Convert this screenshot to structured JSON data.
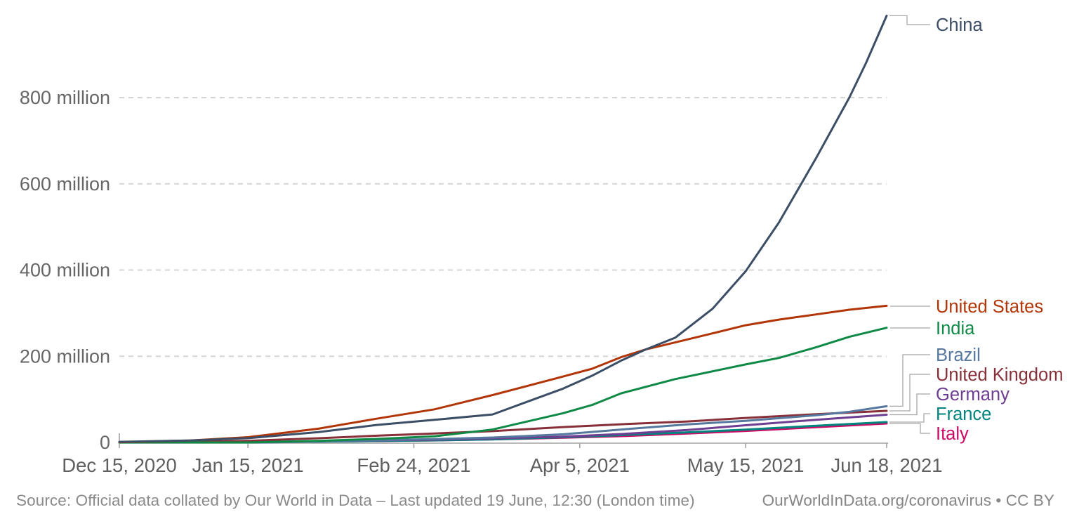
{
  "footer": {
    "source": "Source: Official data collated by Our World in Data – Last updated 19 June, 12:30 (London time)",
    "watermark": "OurWorldInData.org/coronavirus • CC BY"
  },
  "colors": {
    "grid": "#d5d5d5",
    "axis": "#a3a3a3",
    "tick_label": "#5f5f5f",
    "connector": "#a8a8a8",
    "background": "#ffffff"
  },
  "chart_data": {
    "type": "line",
    "title": "",
    "xlabel": "",
    "ylabel": "",
    "y_unit": "doses (millions)",
    "ylim": [
      0,
      1000
    ],
    "xlim_days": [
      0,
      185
    ],
    "x_range_dates": [
      "2020-12-15",
      "2021-06-18"
    ],
    "grid": "dashed-horizontal",
    "legend_position": "right-edge-entity-labels",
    "x_ticks": [
      {
        "label": "Dec 15, 2020",
        "day": 0
      },
      {
        "label": "Jan 15, 2021",
        "day": 31
      },
      {
        "label": "Feb 24, 2021",
        "day": 71
      },
      {
        "label": "Apr 5, 2021",
        "day": 111
      },
      {
        "label": "May 15, 2021",
        "day": 151
      },
      {
        "label": "Jun 18, 2021",
        "day": 185
      }
    ],
    "y_ticks": [
      {
        "label": "0",
        "value": 0
      },
      {
        "label": "200 million",
        "value": 200
      },
      {
        "label": "400 million",
        "value": 400
      },
      {
        "label": "600 million",
        "value": 600
      },
      {
        "label": "800 million",
        "value": 800
      }
    ],
    "series": [
      {
        "name": "Italy",
        "color": "#CF0A66",
        "label_y": 617,
        "elbow_x": 1311,
        "points": [
          [
            0,
            0
          ],
          [
            12,
            0.02
          ],
          [
            31,
            1.1
          ],
          [
            48,
            2.3
          ],
          [
            62,
            3.4
          ],
          [
            76,
            4.7
          ],
          [
            90,
            7.2
          ],
          [
            107,
            10.9
          ],
          [
            121,
            14.7
          ],
          [
            137,
            20.8
          ],
          [
            151,
            26.7
          ],
          [
            168,
            35.5
          ],
          [
            185,
            44
          ]
        ]
      },
      {
        "name": "France",
        "color": "#00847E",
        "label_y": 589,
        "elbow_x": 1316,
        "points": [
          [
            0,
            0
          ],
          [
            12,
            0.01
          ],
          [
            31,
            0.6
          ],
          [
            48,
            1.8
          ],
          [
            62,
            3.4
          ],
          [
            76,
            4.9
          ],
          [
            90,
            7.1
          ],
          [
            107,
            12.1
          ],
          [
            121,
            16.9
          ],
          [
            137,
            23.5
          ],
          [
            151,
            29.6
          ],
          [
            168,
            38.7
          ],
          [
            185,
            47.2
          ]
        ]
      },
      {
        "name": "Germany",
        "color": "#6D3E91",
        "label_y": 561,
        "elbow_x": 1306,
        "points": [
          [
            0,
            0
          ],
          [
            12,
            0.02
          ],
          [
            31,
            1.1
          ],
          [
            48,
            2.7
          ],
          [
            62,
            4.7
          ],
          [
            76,
            6.4
          ],
          [
            90,
            9.4
          ],
          [
            107,
            13.6
          ],
          [
            121,
            19.6
          ],
          [
            137,
            28.9
          ],
          [
            151,
            39.9
          ],
          [
            168,
            52.6
          ],
          [
            185,
            64.3
          ]
        ]
      },
      {
        "name": "United Kingdom",
        "color": "#883039",
        "label_y": 533,
        "elbow_x": 1296,
        "points": [
          [
            0,
            0
          ],
          [
            17,
            1.4
          ],
          [
            31,
            3.8
          ],
          [
            48,
            9.8
          ],
          [
            62,
            15.6
          ],
          [
            76,
            20.9
          ],
          [
            90,
            26.3
          ],
          [
            107,
            35.7
          ],
          [
            121,
            42.2
          ],
          [
            137,
            48.7
          ],
          [
            151,
            56.9
          ],
          [
            168,
            65.6
          ],
          [
            185,
            73.3
          ]
        ]
      },
      {
        "name": "Brazil",
        "color": "#56789F",
        "label_y": 505,
        "elbow_x": 1286,
        "points": [
          [
            0,
            0
          ],
          [
            33,
            0
          ],
          [
            35,
            0.2
          ],
          [
            48,
            2.1
          ],
          [
            62,
            5.4
          ],
          [
            76,
            7.9
          ],
          [
            90,
            11.4
          ],
          [
            107,
            18.9
          ],
          [
            121,
            30
          ],
          [
            137,
            42
          ],
          [
            151,
            50
          ],
          [
            168,
            63
          ],
          [
            176,
            71
          ],
          [
            185,
            84
          ]
        ]
      },
      {
        "name": "India",
        "color": "#0F8A46",
        "label_y": 467,
        "elbow_x": null,
        "points": [
          [
            0,
            0
          ],
          [
            31,
            0
          ],
          [
            34,
            0.6
          ],
          [
            48,
            3.8
          ],
          [
            62,
            8.2
          ],
          [
            76,
            14.3
          ],
          [
            90,
            30
          ],
          [
            107,
            68
          ],
          [
            114,
            87
          ],
          [
            121,
            114
          ],
          [
            134,
            147
          ],
          [
            151,
            181
          ],
          [
            159,
            196
          ],
          [
            168,
            221
          ],
          [
            176,
            245
          ],
          [
            185,
            266
          ]
        ]
      },
      {
        "name": "United States",
        "color": "#B13507",
        "label_y": 436,
        "elbow_x": null,
        "points": [
          [
            0,
            0.6
          ],
          [
            17,
            4.6
          ],
          [
            31,
            12.3
          ],
          [
            48,
            32
          ],
          [
            62,
            55
          ],
          [
            76,
            76.9
          ],
          [
            90,
            110
          ],
          [
            107,
            153
          ],
          [
            114,
            171
          ],
          [
            121,
            198
          ],
          [
            127,
            216
          ],
          [
            134,
            232
          ],
          [
            143,
            253
          ],
          [
            151,
            272
          ],
          [
            159,
            285
          ],
          [
            168,
            297
          ],
          [
            176,
            308
          ],
          [
            185,
            317
          ]
        ]
      },
      {
        "name": "China",
        "color": "#3C4E66",
        "label_y": 35,
        "elbow_x": 1292,
        "points": [
          [
            0,
            1.5
          ],
          [
            17,
            4.5
          ],
          [
            31,
            10
          ],
          [
            48,
            24
          ],
          [
            62,
            40.5
          ],
          [
            76,
            52.5
          ],
          [
            90,
            65
          ],
          [
            107,
            125
          ],
          [
            114,
            155
          ],
          [
            121,
            190
          ],
          [
            127,
            216
          ],
          [
            134,
            243
          ],
          [
            143,
            310
          ],
          [
            151,
            397
          ],
          [
            159,
            510
          ],
          [
            168,
            660
          ],
          [
            176,
            800
          ],
          [
            180,
            880
          ],
          [
            185,
            990
          ]
        ]
      }
    ]
  }
}
